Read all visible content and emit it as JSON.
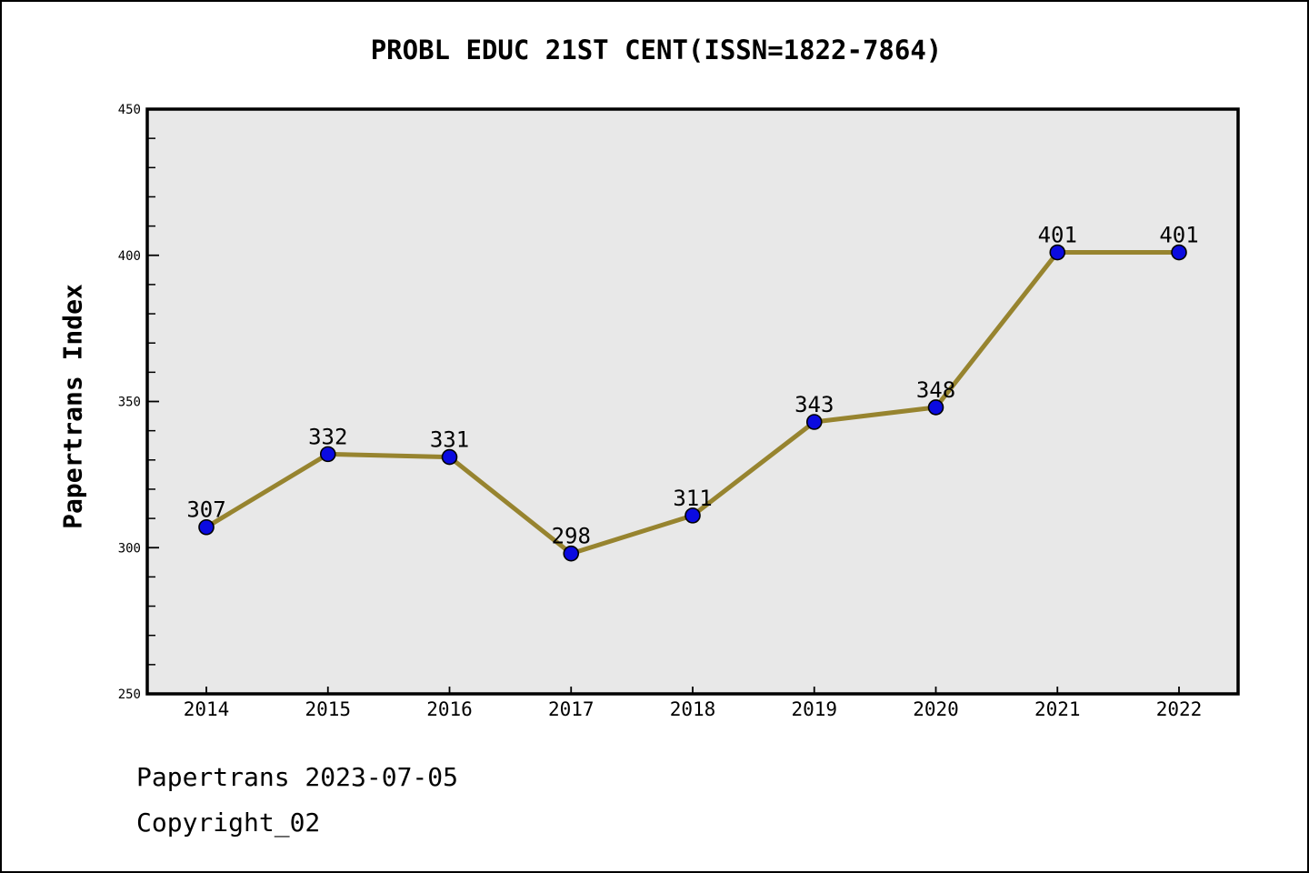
{
  "chart_data": {
    "type": "line",
    "title": "PROBL EDUC 21ST CENT(ISSN=1822-7864)",
    "ylabel": "Papertrans Index",
    "xlabel": "",
    "categories": [
      "2014",
      "2015",
      "2016",
      "2017",
      "2018",
      "2019",
      "2020",
      "2021",
      "2022"
    ],
    "values": [
      307,
      332,
      331,
      298,
      311,
      343,
      348,
      401,
      401
    ],
    "point_labels": [
      "307",
      "332",
      "331",
      "298",
      "311",
      "343",
      "348",
      "401",
      "401"
    ],
    "ylim": [
      250,
      450
    ],
    "yticks_major": [
      250,
      300,
      350,
      400,
      450
    ],
    "ytick_minor_step": 10,
    "grid": false,
    "legend": null,
    "colors": {
      "line": "#97842F",
      "marker_fill": "#0B0BE0",
      "marker_edge": "#000000",
      "plot_background": "#E8E8E8",
      "axis": "#000000",
      "page_background": "#FFFFFF"
    }
  },
  "footer": {
    "line1": "Papertrans 2023-07-05",
    "line2": "Copyright_02"
  }
}
